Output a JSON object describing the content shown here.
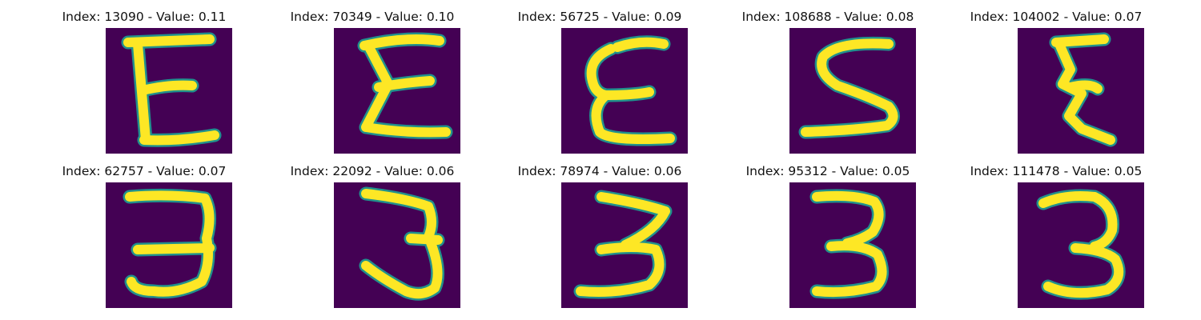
{
  "colors": {
    "background": "#440154",
    "stroke": "#fde725",
    "edge": "#21918c"
  },
  "panels": [
    {
      "title": "Index: 13090 - Value: 0.11",
      "glyph": "E",
      "image": "handwritten-E-glyph"
    },
    {
      "title": "Index: 70349 - Value: 0.10",
      "glyph": "E",
      "image": "handwritten-E-glyph"
    },
    {
      "title": "Index: 56725 - Value: 0.09",
      "glyph": "E",
      "image": "handwritten-E-glyph"
    },
    {
      "title": "Index: 108688 - Value: 0.08",
      "glyph": "S",
      "image": "handwritten-S-glyph"
    },
    {
      "title": "Index: 104002 - Value: 0.07",
      "glyph": "E",
      "image": "handwritten-E-glyph"
    },
    {
      "title": "Index: 62757 - Value: 0.07",
      "glyph": "3",
      "image": "handwritten-3-glyph"
    },
    {
      "title": "Index: 22092 - Value: 0.06",
      "glyph": "3",
      "image": "handwritten-3-glyph"
    },
    {
      "title": "Index: 78974 - Value: 0.06",
      "glyph": "3",
      "image": "handwritten-3-glyph"
    },
    {
      "title": "Index: 95312 - Value: 0.05",
      "glyph": "3",
      "image": "handwritten-3-glyph"
    },
    {
      "title": "Index: 111478 - Value: 0.05",
      "glyph": "3",
      "image": "handwritten-3-glyph"
    }
  ]
}
